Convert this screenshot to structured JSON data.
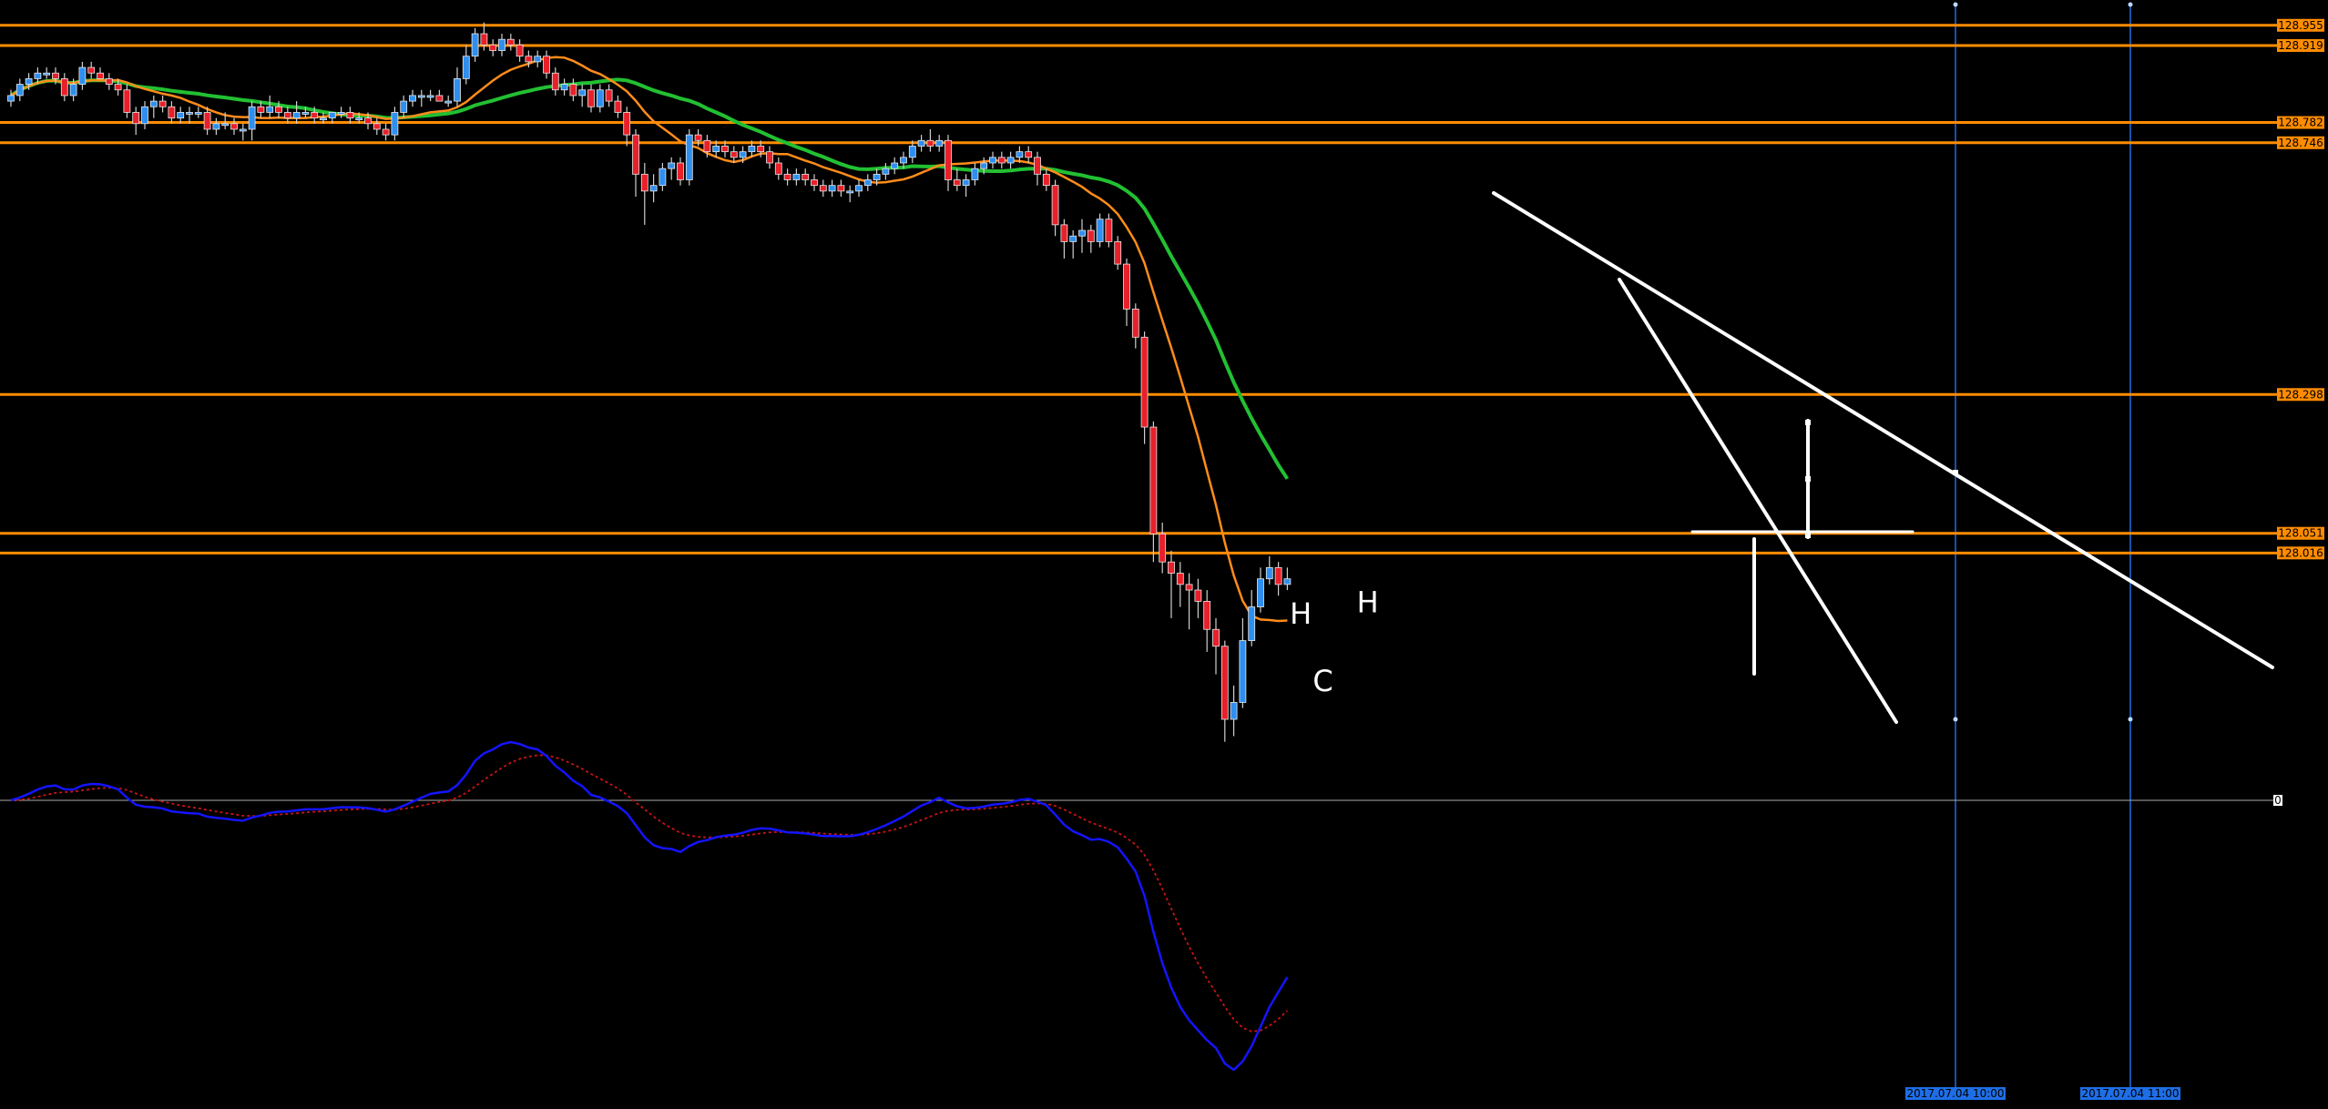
{
  "chart_data": {
    "type": "candlestick",
    "price_range": [
      127.72,
      129.0
    ],
    "price_levels": [
      {
        "value": 128.955,
        "label": "128.955"
      },
      {
        "value": 128.919,
        "label": "128.919"
      },
      {
        "value": 128.782,
        "label": "128.782"
      },
      {
        "value": 128.746,
        "label": "128.746"
      },
      {
        "value": 128.298,
        "label": "128.298"
      },
      {
        "value": 128.051,
        "label": "128.051"
      },
      {
        "value": 128.016,
        "label": "128.016"
      }
    ],
    "time_markers": [
      {
        "label": "2017.07.04 10:00"
      },
      {
        "label": "2017.07.04 11:00"
      }
    ],
    "pattern_labels": [
      {
        "text": "H",
        "price": 127.89,
        "bar": 144.5
      },
      {
        "text": "C",
        "price": 127.77,
        "bar": 147
      },
      {
        "text": "H",
        "price": 127.91,
        "bar": 152
      }
    ],
    "oscillator": {
      "zero_label": "0"
    },
    "colors": {
      "background": "#000000",
      "bull": "#2f8ff0",
      "bear": "#e8202a",
      "wick": "#d0d0d0",
      "level": "#ff8c00",
      "ma_fast": "#ff8c1a",
      "ma_slow": "#22c032",
      "trend": "#ffffff",
      "osc_main": "#1414ff",
      "osc_signal": "#c81414",
      "time_line": "#1e6ee6",
      "zero_line": "#aaaaaa"
    },
    "ohlc": [
      [
        128.82,
        128.84,
        128.81,
        128.83
      ],
      [
        128.83,
        128.86,
        128.82,
        128.85
      ],
      [
        128.85,
        128.87,
        128.84,
        128.86
      ],
      [
        128.86,
        128.88,
        128.85,
        128.87
      ],
      [
        128.87,
        128.88,
        128.86,
        128.87
      ],
      [
        128.87,
        128.88,
        128.85,
        128.86
      ],
      [
        128.86,
        128.87,
        128.82,
        128.83
      ],
      [
        128.83,
        128.86,
        128.82,
        128.85
      ],
      [
        128.85,
        128.89,
        128.84,
        128.88
      ],
      [
        128.88,
        128.89,
        128.86,
        128.87
      ],
      [
        128.87,
        128.88,
        128.86,
        128.86
      ],
      [
        128.86,
        128.87,
        128.84,
        128.85
      ],
      [
        128.85,
        128.86,
        128.83,
        128.84
      ],
      [
        128.84,
        128.85,
        128.79,
        128.8
      ],
      [
        128.8,
        128.81,
        128.76,
        128.78
      ],
      [
        128.78,
        128.82,
        128.77,
        128.81
      ],
      [
        128.81,
        128.83,
        128.79,
        128.82
      ],
      [
        128.82,
        128.83,
        128.8,
        128.81
      ],
      [
        128.81,
        128.82,
        128.78,
        128.79
      ],
      [
        128.79,
        128.81,
        128.78,
        128.8
      ],
      [
        128.8,
        128.81,
        128.78,
        128.8
      ],
      [
        128.8,
        128.81,
        128.79,
        128.8
      ],
      [
        128.8,
        128.81,
        128.76,
        128.77
      ],
      [
        128.77,
        128.79,
        128.76,
        128.78
      ],
      [
        128.78,
        128.8,
        128.77,
        128.78
      ],
      [
        128.78,
        128.79,
        128.76,
        128.77
      ],
      [
        128.77,
        128.78,
        128.75,
        128.77
      ],
      [
        128.77,
        128.82,
        128.75,
        128.81
      ],
      [
        128.81,
        128.82,
        128.79,
        128.8
      ],
      [
        128.8,
        128.83,
        128.79,
        128.81
      ],
      [
        128.81,
        128.82,
        128.79,
        128.8
      ],
      [
        128.8,
        128.81,
        128.78,
        128.79
      ],
      [
        128.79,
        128.82,
        128.78,
        128.8
      ],
      [
        128.8,
        128.81,
        128.79,
        128.8
      ],
      [
        128.8,
        128.81,
        128.78,
        128.79
      ],
      [
        128.79,
        128.8,
        128.78,
        128.79
      ],
      [
        128.79,
        128.8,
        128.78,
        128.8
      ],
      [
        128.8,
        128.81,
        128.79,
        128.8
      ],
      [
        128.8,
        128.81,
        128.78,
        128.79
      ],
      [
        128.79,
        128.8,
        128.78,
        128.79
      ],
      [
        128.79,
        128.8,
        128.77,
        128.78
      ],
      [
        128.78,
        128.79,
        128.76,
        128.77
      ],
      [
        128.77,
        128.78,
        128.75,
        128.76
      ],
      [
        128.76,
        128.81,
        128.75,
        128.8
      ],
      [
        128.8,
        128.83,
        128.79,
        128.82
      ],
      [
        128.82,
        128.84,
        128.81,
        128.83
      ],
      [
        128.83,
        128.84,
        128.81,
        128.83
      ],
      [
        128.83,
        128.84,
        128.82,
        128.83
      ],
      [
        128.83,
        128.84,
        128.82,
        128.82
      ],
      [
        128.82,
        128.83,
        128.81,
        128.82
      ],
      [
        128.82,
        128.88,
        128.81,
        128.86
      ],
      [
        128.86,
        128.92,
        128.85,
        128.9
      ],
      [
        128.9,
        128.95,
        128.89,
        128.94
      ],
      [
        128.94,
        128.96,
        128.91,
        128.92
      ],
      [
        128.92,
        128.93,
        128.9,
        128.91
      ],
      [
        128.91,
        128.94,
        128.9,
        128.93
      ],
      [
        128.93,
        128.94,
        128.91,
        128.92
      ],
      [
        128.92,
        128.93,
        128.89,
        128.9
      ],
      [
        128.9,
        128.91,
        128.88,
        128.89
      ],
      [
        128.89,
        128.91,
        128.88,
        128.9
      ],
      [
        128.9,
        128.91,
        128.86,
        128.87
      ],
      [
        128.87,
        128.88,
        128.83,
        128.84
      ],
      [
        128.84,
        128.86,
        128.83,
        128.85
      ],
      [
        128.85,
        128.86,
        128.82,
        128.83
      ],
      [
        128.83,
        128.85,
        128.81,
        128.84
      ],
      [
        128.84,
        128.85,
        128.8,
        128.81
      ],
      [
        128.81,
        128.85,
        128.8,
        128.84
      ],
      [
        128.84,
        128.85,
        128.81,
        128.82
      ],
      [
        128.82,
        128.83,
        128.79,
        128.8
      ],
      [
        128.8,
        128.81,
        128.74,
        128.76
      ],
      [
        128.76,
        128.77,
        128.65,
        128.69
      ],
      [
        128.69,
        128.71,
        128.6,
        128.66
      ],
      [
        128.66,
        128.69,
        128.64,
        128.67
      ],
      [
        128.67,
        128.71,
        128.66,
        128.7
      ],
      [
        128.7,
        128.72,
        128.68,
        128.71
      ],
      [
        128.71,
        128.72,
        128.67,
        128.68
      ],
      [
        128.68,
        128.77,
        128.67,
        128.76
      ],
      [
        128.76,
        128.77,
        128.74,
        128.75
      ],
      [
        128.75,
        128.76,
        128.72,
        128.73
      ],
      [
        128.73,
        128.75,
        128.72,
        128.74
      ],
      [
        128.74,
        128.75,
        128.72,
        128.73
      ],
      [
        128.73,
        128.74,
        128.71,
        128.72
      ],
      [
        128.72,
        128.74,
        128.71,
        128.73
      ],
      [
        128.73,
        128.75,
        128.72,
        128.74
      ],
      [
        128.74,
        128.75,
        128.72,
        128.73
      ],
      [
        128.73,
        128.74,
        128.7,
        128.71
      ],
      [
        128.71,
        128.72,
        128.68,
        128.69
      ],
      [
        128.69,
        128.7,
        128.67,
        128.68
      ],
      [
        128.68,
        128.7,
        128.67,
        128.69
      ],
      [
        128.69,
        128.7,
        128.67,
        128.68
      ],
      [
        128.68,
        128.69,
        128.66,
        128.67
      ],
      [
        128.67,
        128.68,
        128.65,
        128.66
      ],
      [
        128.66,
        128.68,
        128.65,
        128.67
      ],
      [
        128.67,
        128.68,
        128.65,
        128.66
      ],
      [
        128.66,
        128.67,
        128.64,
        128.66
      ],
      [
        128.66,
        128.68,
        128.65,
        128.67
      ],
      [
        128.67,
        128.69,
        128.66,
        128.68
      ],
      [
        128.68,
        128.7,
        128.67,
        128.69
      ],
      [
        128.69,
        128.71,
        128.68,
        128.7
      ],
      [
        128.7,
        128.72,
        128.69,
        128.71
      ],
      [
        128.71,
        128.73,
        128.7,
        128.72
      ],
      [
        128.72,
        128.75,
        128.71,
        128.74
      ],
      [
        128.74,
        128.76,
        128.73,
        128.75
      ],
      [
        128.75,
        128.77,
        128.73,
        128.74
      ],
      [
        128.74,
        128.76,
        128.73,
        128.75
      ],
      [
        128.75,
        128.76,
        128.66,
        128.68
      ],
      [
        128.68,
        128.7,
        128.66,
        128.67
      ],
      [
        128.67,
        128.69,
        128.65,
        128.68
      ],
      [
        128.68,
        128.71,
        128.67,
        128.7
      ],
      [
        128.7,
        128.72,
        128.69,
        128.71
      ],
      [
        128.71,
        128.73,
        128.7,
        128.72
      ],
      [
        128.72,
        128.73,
        128.7,
        128.71
      ],
      [
        128.71,
        128.73,
        128.7,
        128.72
      ],
      [
        128.72,
        128.74,
        128.71,
        128.73
      ],
      [
        128.73,
        128.74,
        128.71,
        128.72
      ],
      [
        128.72,
        128.73,
        128.67,
        128.69
      ],
      [
        128.69,
        128.7,
        128.66,
        128.67
      ],
      [
        128.67,
        128.68,
        128.58,
        128.6
      ],
      [
        128.6,
        128.61,
        128.54,
        128.57
      ],
      [
        128.57,
        128.59,
        128.54,
        128.58
      ],
      [
        128.58,
        128.61,
        128.55,
        128.59
      ],
      [
        128.59,
        128.6,
        128.55,
        128.57
      ],
      [
        128.57,
        128.62,
        128.56,
        128.61
      ],
      [
        128.61,
        128.62,
        128.56,
        128.57
      ],
      [
        128.57,
        128.58,
        128.52,
        128.53
      ],
      [
        128.53,
        128.54,
        128.42,
        128.45
      ],
      [
        128.45,
        128.46,
        128.38,
        128.4
      ],
      [
        128.4,
        128.41,
        128.21,
        128.24
      ],
      [
        128.24,
        128.25,
        128.0,
        128.05
      ],
      [
        128.05,
        128.07,
        127.98,
        128.0
      ],
      [
        128.0,
        128.02,
        127.9,
        127.98
      ],
      [
        127.98,
        128.0,
        127.92,
        127.96
      ],
      [
        127.96,
        127.98,
        127.88,
        127.95
      ],
      [
        127.95,
        127.97,
        127.9,
        127.93
      ],
      [
        127.93,
        127.95,
        127.84,
        127.88
      ],
      [
        127.88,
        127.9,
        127.8,
        127.85
      ],
      [
        127.85,
        127.86,
        127.68,
        127.72
      ],
      [
        127.72,
        127.78,
        127.69,
        127.75
      ],
      [
        127.75,
        127.9,
        127.74,
        127.86
      ],
      [
        127.86,
        127.95,
        127.85,
        127.92
      ],
      [
        127.92,
        127.99,
        127.91,
        127.97
      ],
      [
        127.97,
        128.01,
        127.96,
        127.99
      ],
      [
        127.99,
        128.0,
        127.94,
        127.96
      ],
      [
        127.96,
        127.99,
        127.95,
        127.97
      ]
    ]
  }
}
